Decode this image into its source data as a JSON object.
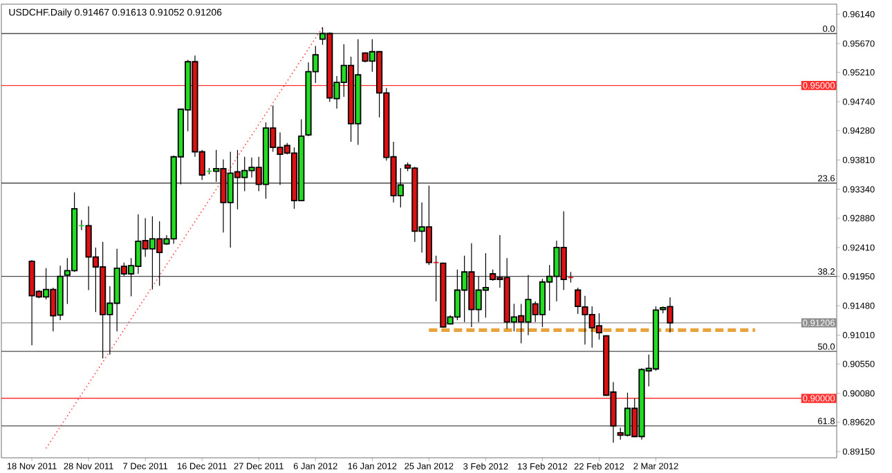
{
  "chart_data": {
    "type": "candlestick",
    "title": "USDCHF.Daily  0.91467 0.91613 0.91052 0.91206",
    "categories": [
      "18 Nov 2011",
      null,
      null,
      null,
      null,
      null,
      null,
      null,
      "28 Nov 2011",
      null,
      null,
      null,
      null,
      null,
      null,
      null,
      "7 Dec 2011",
      null,
      null,
      null,
      null,
      null,
      null,
      null,
      "16 Dec 2011",
      null,
      null,
      null,
      null,
      null,
      null,
      null,
      "27 Dec 2011",
      null,
      null,
      null,
      null,
      null,
      null,
      null,
      "6 Jan 2012",
      null,
      null,
      null,
      null,
      null,
      null,
      null,
      "16 Jan 2012",
      null,
      null,
      null,
      null,
      null,
      null,
      null,
      "25 Jan 2012",
      null,
      null,
      null,
      null,
      null,
      null,
      null,
      "3 Feb 2012",
      null,
      null,
      null,
      null,
      null,
      null,
      null,
      "13 Feb 2012",
      null,
      null,
      null,
      null,
      null,
      null,
      null,
      "22 Feb 2012",
      null,
      null,
      null,
      null,
      null,
      null,
      null,
      "2 Mar 2012",
      null,
      null,
      null,
      null,
      null,
      null,
      null,
      null,
      null,
      null,
      null,
      null,
      null,
      null,
      null,
      null,
      null,
      null,
      null,
      null,
      null,
      null,
      null,
      null,
      null
    ],
    "series": [
      {
        "type": "line",
        "values": [
          null,
          null,
          0.892,
          null,
          null,
          null,
          null,
          null,
          null,
          null,
          null,
          null,
          null,
          null,
          null,
          null,
          null,
          null,
          null,
          null,
          null,
          null,
          null,
          null,
          null,
          null,
          null,
          null,
          null,
          null,
          null,
          null,
          null,
          null,
          null,
          null,
          null,
          null,
          null,
          null,
          null,
          0.9593,
          null,
          null,
          null,
          null,
          null,
          null,
          null,
          null,
          null,
          null,
          null,
          null,
          null,
          null,
          null,
          null,
          null,
          null,
          null,
          null,
          null,
          null,
          null,
          null,
          null,
          null,
          null,
          null,
          null,
          null,
          null,
          null,
          null,
          null,
          null,
          null,
          null,
          null,
          null,
          null,
          null,
          null,
          null,
          null,
          null,
          null,
          null,
          null,
          null,
          null,
          null,
          null,
          null,
          null,
          null,
          null,
          null,
          null,
          null,
          null,
          null,
          null,
          null,
          null,
          null,
          null,
          null,
          null,
          null,
          null,
          null,
          null
        ],
        "color": "#ff4040",
        "line_style": "dotted"
      },
      {
        "type": "line",
        "values": [
          null,
          null,
          null,
          null,
          null,
          null,
          null,
          null,
          null,
          null,
          null,
          null,
          null,
          null,
          null,
          null,
          null,
          null,
          null,
          null,
          null,
          null,
          null,
          null,
          null,
          null,
          null,
          null,
          null,
          null,
          null,
          null,
          null,
          null,
          null,
          null,
          null,
          null,
          null,
          null,
          null,
          null,
          null,
          null,
          null,
          null,
          null,
          null,
          null,
          null,
          null,
          null,
          null,
          null,
          null,
          null,
          0.9109,
          0.9109,
          0.9109,
          0.9109,
          0.9109,
          0.9109,
          0.9109,
          0.9109,
          0.9109,
          0.9109,
          0.9109,
          0.9109,
          0.9109,
          0.9109,
          0.9109,
          0.9109,
          0.9109,
          0.9109,
          0.9109,
          0.9109,
          0.9109,
          0.9109,
          0.9109,
          0.9109,
          0.9109,
          0.9109,
          0.9109,
          0.9109,
          0.9109,
          0.9109,
          0.9109,
          0.9109,
          0.9109,
          0.9109,
          0.9109,
          0.9109,
          0.9109,
          0.9109,
          0.9109,
          0.9109,
          0.9109,
          0.9109,
          0.9109,
          0.9109,
          0.9109,
          0.9109,
          0.9109,
          null,
          null,
          null,
          null,
          null,
          null,
          null,
          null,
          null,
          null,
          null
        ],
        "color": "#e8a33d",
        "line_style": "dashed"
      },
      {
        "ohlc": [
          [
            0.9219,
            0.9221,
            0.9085,
            0.9164
          ],
          [
            0.9171,
            0.9173,
            0.916,
            0.9162
          ],
          [
            0.9162,
            0.9208,
            0.9158,
            0.9174
          ],
          [
            0.9174,
            0.9177,
            0.9107,
            0.9132
          ],
          [
            0.9133,
            0.9212,
            0.9125,
            0.9195
          ],
          [
            0.9197,
            0.9224,
            0.9151,
            0.9204
          ],
          [
            0.9204,
            0.9329,
            0.9202,
            0.9303
          ],
          [
            0.9276,
            0.9285,
            0.9269,
            0.9276
          ],
          [
            0.9276,
            0.9307,
            0.9173,
            0.9226
          ],
          [
            0.9226,
            0.9241,
            0.9138,
            0.921
          ],
          [
            0.921,
            0.925,
            0.9064,
            0.9134
          ],
          [
            0.9134,
            0.9179,
            0.907,
            0.9152
          ],
          [
            0.9152,
            0.9239,
            0.9107,
            0.9208
          ],
          [
            0.9211,
            0.9217,
            0.9195,
            0.9199
          ],
          [
            0.9199,
            0.9224,
            0.9163,
            0.9212
          ],
          [
            0.9211,
            0.9294,
            0.9199,
            0.9251
          ],
          [
            0.9252,
            0.9288,
            0.9226,
            0.9239
          ],
          [
            0.9239,
            0.9291,
            0.9174,
            0.9255
          ],
          [
            0.9255,
            0.9283,
            0.918,
            0.9233
          ],
          [
            0.9247,
            0.9261,
            0.9245,
            0.9255
          ],
          [
            0.9255,
            0.9388,
            0.9247,
            0.9386
          ],
          [
            0.9386,
            0.9463,
            0.9342,
            0.9462
          ],
          [
            0.9461,
            0.9541,
            0.9427,
            0.9538
          ],
          [
            0.9538,
            0.9548,
            0.9386,
            0.9394
          ],
          [
            0.9394,
            0.9397,
            0.9349,
            0.9357
          ],
          [
            0.9363,
            0.9368,
            0.9358,
            0.9363
          ],
          [
            0.9363,
            0.9397,
            0.9346,
            0.9367
          ],
          [
            0.9367,
            0.9382,
            0.9265,
            0.9313
          ],
          [
            0.9313,
            0.9394,
            0.9241,
            0.936
          ],
          [
            0.9362,
            0.9397,
            0.9302,
            0.9353
          ],
          [
            0.9353,
            0.9386,
            0.9331,
            0.9364
          ],
          [
            0.9364,
            0.9385,
            0.9353,
            0.9369
          ],
          [
            0.9369,
            0.9386,
            0.9331,
            0.9342
          ],
          [
            0.9342,
            0.9441,
            0.9319,
            0.9432
          ],
          [
            0.9432,
            0.9468,
            0.9394,
            0.9401
          ],
          [
            0.9401,
            0.9425,
            0.9341,
            0.939
          ],
          [
            0.9404,
            0.9408,
            0.939,
            0.9392
          ],
          [
            0.9392,
            0.9401,
            0.9303,
            0.9316
          ],
          [
            0.9316,
            0.9446,
            0.9315,
            0.9419
          ],
          [
            0.9421,
            0.9537,
            0.9419,
            0.9522
          ],
          [
            0.9522,
            0.9563,
            0.9504,
            0.9549
          ],
          [
            0.9574,
            0.9593,
            0.9565,
            0.9583
          ],
          [
            0.9583,
            0.9585,
            0.9474,
            0.948
          ],
          [
            0.9479,
            0.9515,
            0.9463,
            0.9505
          ],
          [
            0.9505,
            0.9566,
            0.9482,
            0.9532
          ],
          [
            0.9532,
            0.9546,
            0.941,
            0.9439
          ],
          [
            0.9439,
            0.9574,
            0.9405,
            0.9517
          ],
          [
            0.9552,
            0.9553,
            0.9537,
            0.9539
          ],
          [
            0.9539,
            0.9574,
            0.9522,
            0.9554
          ],
          [
            0.9554,
            0.9555,
            0.9449,
            0.9488
          ],
          [
            0.9488,
            0.9496,
            0.938,
            0.9385
          ],
          [
            0.9386,
            0.941,
            0.9313,
            0.9324
          ],
          [
            0.9324,
            0.9368,
            0.9305,
            0.9341
          ],
          [
            0.9373,
            0.9377,
            0.9363,
            0.9368
          ],
          [
            0.9368,
            0.937,
            0.925,
            0.9267
          ],
          [
            0.9267,
            0.9313,
            0.9233,
            0.9274
          ],
          [
            0.9274,
            0.934,
            0.9213,
            0.9217
          ],
          [
            0.9217,
            0.9228,
            0.9155,
            0.9217
          ],
          [
            0.9216,
            0.9217,
            0.9113,
            0.9114
          ],
          [
            0.9119,
            0.9133,
            0.9118,
            0.913
          ],
          [
            0.913,
            0.9206,
            0.9125,
            0.9173
          ],
          [
            0.9173,
            0.9228,
            0.9122,
            0.9202
          ],
          [
            0.9202,
            0.9248,
            0.9114,
            0.9142
          ],
          [
            0.9142,
            0.9195,
            0.9122,
            0.9173
          ],
          [
            0.9173,
            0.9232,
            0.9129,
            0.9177
          ],
          [
            0.9199,
            0.9206,
            0.9188,
            0.919
          ],
          [
            0.9193,
            0.9261,
            0.9177,
            0.919
          ],
          [
            0.9193,
            0.9224,
            0.9111,
            0.9122
          ],
          [
            0.9122,
            0.9151,
            0.9107,
            0.913
          ],
          [
            0.9132,
            0.9151,
            0.9088,
            0.9122
          ],
          [
            0.9122,
            0.9197,
            0.9101,
            0.9158
          ],
          [
            0.9151,
            0.9155,
            0.9122,
            0.9134
          ],
          [
            0.9134,
            0.9191,
            0.9114,
            0.9186
          ],
          [
            0.9186,
            0.9213,
            0.914,
            0.9195
          ],
          [
            0.9195,
            0.9252,
            0.9155,
            0.9241
          ],
          [
            0.9241,
            0.9299,
            0.9173,
            0.919
          ],
          [
            0.9193,
            0.9202,
            0.9185,
            0.9193
          ],
          [
            0.9173,
            0.9177,
            0.9135,
            0.9147
          ],
          [
            0.9146,
            0.9164,
            0.9086,
            0.9134
          ],
          [
            0.9134,
            0.9147,
            0.9081,
            0.9113
          ],
          [
            0.9116,
            0.9136,
            0.9094,
            0.9105
          ],
          [
            0.91,
            0.9101,
            0.9004,
            0.9005
          ],
          [
            0.901,
            0.9026,
            0.8929,
            0.8956
          ],
          [
            0.8945,
            0.8953,
            0.8934,
            0.8941
          ],
          [
            0.8941,
            0.9009,
            0.8939,
            0.8984
          ],
          [
            0.8984,
            0.9,
            0.8938,
            0.8939
          ],
          [
            0.8939,
            0.9048,
            0.8934,
            0.9046
          ],
          [
            0.9044,
            0.907,
            0.9019,
            0.9048
          ],
          [
            0.9047,
            0.9147,
            0.9044,
            0.9141
          ],
          [
            0.9142,
            0.9147,
            0.9136,
            0.9145
          ],
          [
            0.91467,
            0.91613,
            0.91052,
            0.91206
          ],
          null,
          null,
          null,
          null,
          null,
          null,
          null,
          null,
          null,
          null,
          null,
          null,
          null,
          null,
          null,
          null,
          null,
          null,
          null,
          null,
          null,
          null,
          null
        ],
        "colors": [
          "#dd1111",
          "#dd1111",
          "#22dd22",
          "#dd1111",
          "#22dd22",
          "#22dd22",
          "#22dd22",
          "#22dd22",
          "#dd1111",
          "#dd1111",
          "#dd1111",
          "#22dd22",
          "#22dd22",
          "#dd1111",
          "#22dd22",
          "#22dd22",
          "#dd1111",
          "#22dd22",
          "#dd1111",
          "#22dd22",
          "#22dd22",
          "#22dd22",
          "#22dd22",
          "#dd1111",
          "#dd1111",
          "#22dd22",
          "#22dd22",
          "#dd1111",
          "#22dd22",
          "#dd1111",
          "#22dd22",
          "#22dd22",
          "#dd1111",
          "#22dd22",
          "#dd1111",
          "#dd1111",
          "#dd1111",
          "#dd1111",
          "#22dd22",
          "#22dd22",
          "#22dd22",
          "#22dd22",
          "#dd1111",
          "#22dd22",
          "#22dd22",
          "#dd1111",
          "#22dd22",
          "#dd1111",
          "#22dd22",
          "#dd1111",
          "#dd1111",
          "#dd1111",
          "#22dd22",
          "#dd1111",
          "#dd1111",
          "#22dd22",
          "#dd1111",
          "#dd1111",
          "#dd1111",
          "#22dd22",
          "#22dd22",
          "#22dd22",
          "#dd1111",
          "#22dd22",
          "#22dd22",
          "#dd1111",
          "#dd1111",
          "#dd1111",
          "#22dd22",
          "#dd1111",
          "#22dd22",
          "#dd1111",
          "#22dd22",
          "#22dd22",
          "#22dd22",
          "#dd1111",
          "#dd1111",
          "#dd1111",
          "#dd1111",
          "#dd1111",
          "#dd1111",
          "#dd1111",
          "#dd1111",
          "#dd1111",
          "#22dd22",
          "#dd1111",
          "#22dd22",
          "#22dd22",
          "#22dd22",
          "#22dd22",
          "#dd1111",
          null,
          null,
          null,
          null,
          null,
          null,
          null,
          null,
          null,
          null,
          null,
          null,
          null,
          null,
          null,
          null,
          null,
          null,
          null,
          null,
          null,
          null,
          null
        ]
      }
    ],
    "ylim": [
      0.8905,
      0.963
    ],
    "yticks": [
      {
        "value": 0.9614,
        "label": "0.96140"
      },
      {
        "value": 0.9567,
        "label": "0.95670"
      },
      {
        "value": 0.9521,
        "label": "0.95210"
      },
      {
        "value": 0.9474,
        "label": "0.94740"
      },
      {
        "value": 0.9428,
        "label": "0.94280"
      },
      {
        "value": 0.9381,
        "label": "0.93810"
      },
      {
        "value": 0.9334,
        "label": "0.93340"
      },
      {
        "value": 0.9288,
        "label": "0.92880"
      },
      {
        "value": 0.9241,
        "label": "0.92410"
      },
      {
        "value": 0.9195,
        "label": "0.91950"
      },
      {
        "value": 0.9148,
        "label": "0.91480"
      },
      {
        "value": 0.9101,
        "label": "0.91010"
      },
      {
        "value": 0.9055,
        "label": "0.90550"
      },
      {
        "value": 0.9008,
        "label": "0.90080"
      },
      {
        "value": 0.8962,
        "label": "0.89620"
      },
      {
        "value": 0.8915,
        "label": "0.89150"
      }
    ],
    "ref_lines": [
      {
        "axis": "y",
        "value": 0.9583
      },
      {
        "axis": "y",
        "value": 0.9344
      },
      {
        "axis": "y",
        "value": 0.9195
      },
      {
        "axis": "y",
        "value": 0.9075
      },
      {
        "axis": "y",
        "value": 0.8956
      },
      {
        "axis": "y",
        "value": 0.95,
        "label": "0.95000",
        "color": "#ff3030"
      },
      {
        "axis": "y",
        "value": 0.9,
        "label": "0.90000",
        "color": "#ff3030"
      },
      {
        "axis": "y",
        "value": 0.91206,
        "label": "0.91206",
        "color": "#909090"
      }
    ],
    "annotations": [
      {
        "text": "0.0",
        "y": 0.9583
      },
      {
        "text": "23.6",
        "y": 0.9344
      },
      {
        "text": "38.2",
        "y": 0.9195
      },
      {
        "text": "50.0",
        "y": 0.9075
      },
      {
        "text": "61.8",
        "y": 0.8956
      }
    ]
  }
}
